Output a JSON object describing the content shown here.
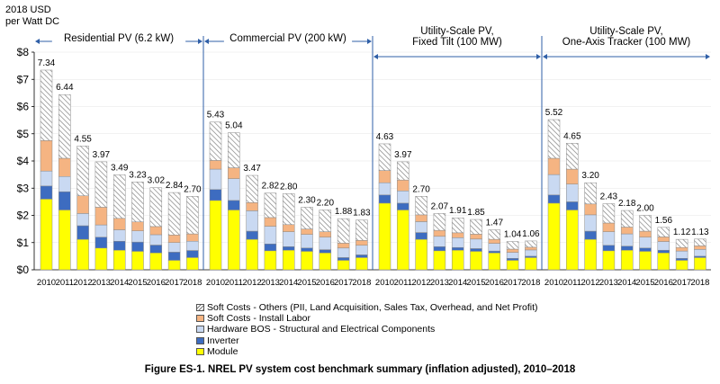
{
  "unit_label": [
    "2018 USD",
    "per Watt DC"
  ],
  "caption": "Figure ES-1. NREL PV system cost benchmark summary (inflation adjusted), 2010–2018",
  "chart_data": {
    "type": "bar",
    "stacked": true,
    "ylim": [
      0,
      8
    ],
    "yticks": [
      "$0",
      "$1",
      "$2",
      "$3",
      "$4",
      "$5",
      "$6",
      "$7",
      "$8"
    ],
    "categories": [
      "2010",
      "2011",
      "2012",
      "2013",
      "2014",
      "2015",
      "2016",
      "2017",
      "2018"
    ],
    "legend_order": [
      "soft_other",
      "soft_labor",
      "bos",
      "inverter",
      "module"
    ],
    "series_info": [
      {
        "key": "module",
        "name": "Module",
        "color": "#ffff00"
      },
      {
        "key": "inverter",
        "name": "Inverter",
        "color": "#3d6cc0"
      },
      {
        "key": "bos",
        "name": "Hardware BOS - Structural and Electrical Components",
        "color": "#c9d9f2"
      },
      {
        "key": "soft_labor",
        "name": "Soft Costs - Install Labor",
        "color": "#f5b482"
      },
      {
        "key": "soft_other",
        "name": "Soft Costs - Others (PII, Land Acquisition, Sales Tax, Overhead, and Net Profit)",
        "color": "#ffffff",
        "pattern": "hatch"
      }
    ],
    "groups": [
      {
        "title": [
          "Residential PV (6.2 kW)"
        ],
        "totals": [
          7.34,
          6.44,
          4.55,
          3.97,
          3.49,
          3.23,
          3.02,
          2.84,
          2.7
        ],
        "series": {
          "module": [
            2.6,
            2.2,
            1.12,
            0.8,
            0.72,
            0.68,
            0.62,
            0.35,
            0.45
          ],
          "inverter": [
            0.48,
            0.67,
            0.5,
            0.4,
            0.33,
            0.34,
            0.29,
            0.3,
            0.26
          ],
          "bos": [
            0.55,
            0.56,
            0.45,
            0.45,
            0.42,
            0.41,
            0.38,
            0.35,
            0.34
          ],
          "soft_labor": [
            1.12,
            0.67,
            0.65,
            0.65,
            0.42,
            0.33,
            0.3,
            0.28,
            0.27
          ],
          "soft_other": [
            2.59,
            2.34,
            1.83,
            1.67,
            1.6,
            1.47,
            1.43,
            1.56,
            1.38
          ]
        }
      },
      {
        "title": [
          "Commercial PV (200 kW)"
        ],
        "totals": [
          5.43,
          5.04,
          3.47,
          2.82,
          2.8,
          2.3,
          2.2,
          1.88,
          1.83
        ],
        "series": {
          "module": [
            2.55,
            2.2,
            1.12,
            0.7,
            0.72,
            0.68,
            0.62,
            0.35,
            0.45
          ],
          "inverter": [
            0.4,
            0.35,
            0.3,
            0.25,
            0.13,
            0.12,
            0.12,
            0.1,
            0.1
          ],
          "bos": [
            0.75,
            0.8,
            0.75,
            0.65,
            0.55,
            0.5,
            0.46,
            0.35,
            0.35
          ],
          "soft_labor": [
            0.32,
            0.4,
            0.3,
            0.32,
            0.26,
            0.2,
            0.2,
            0.18,
            0.18
          ],
          "soft_other": [
            1.41,
            1.29,
            1.0,
            0.9,
            1.14,
            0.8,
            0.8,
            0.9,
            0.75
          ]
        }
      },
      {
        "title": [
          "Utility-Scale PV,",
          "Fixed Tilt (100 MW)"
        ],
        "totals": [
          4.63,
          3.97,
          2.7,
          2.07,
          1.91,
          1.85,
          1.47,
          1.04,
          1.06
        ],
        "series": {
          "module": [
            2.45,
            2.2,
            1.12,
            0.7,
            0.72,
            0.68,
            0.62,
            0.35,
            0.45
          ],
          "inverter": [
            0.3,
            0.25,
            0.25,
            0.15,
            0.1,
            0.1,
            0.07,
            0.07,
            0.05
          ],
          "bos": [
            0.45,
            0.45,
            0.4,
            0.38,
            0.36,
            0.35,
            0.28,
            0.22,
            0.23
          ],
          "soft_labor": [
            0.45,
            0.4,
            0.25,
            0.22,
            0.18,
            0.18,
            0.15,
            0.12,
            0.1
          ],
          "soft_other": [
            0.98,
            0.67,
            0.68,
            0.62,
            0.55,
            0.54,
            0.35,
            0.28,
            0.23
          ]
        }
      },
      {
        "title": [
          "Utility-Scale PV,",
          "One-Axis Tracker (100 MW)"
        ],
        "totals": [
          5.52,
          4.65,
          3.2,
          2.43,
          2.18,
          2.0,
          1.56,
          1.12,
          1.13
        ],
        "series": {
          "module": [
            2.45,
            2.2,
            1.12,
            0.7,
            0.72,
            0.68,
            0.62,
            0.35,
            0.45
          ],
          "inverter": [
            0.3,
            0.3,
            0.3,
            0.2,
            0.15,
            0.12,
            0.1,
            0.07,
            0.05
          ],
          "bos": [
            0.75,
            0.65,
            0.6,
            0.5,
            0.45,
            0.4,
            0.32,
            0.27,
            0.25
          ],
          "soft_labor": [
            0.6,
            0.55,
            0.4,
            0.32,
            0.25,
            0.22,
            0.17,
            0.13,
            0.13
          ],
          "soft_other": [
            1.42,
            0.95,
            0.78,
            0.71,
            0.61,
            0.58,
            0.35,
            0.3,
            0.25
          ]
        }
      }
    ]
  }
}
